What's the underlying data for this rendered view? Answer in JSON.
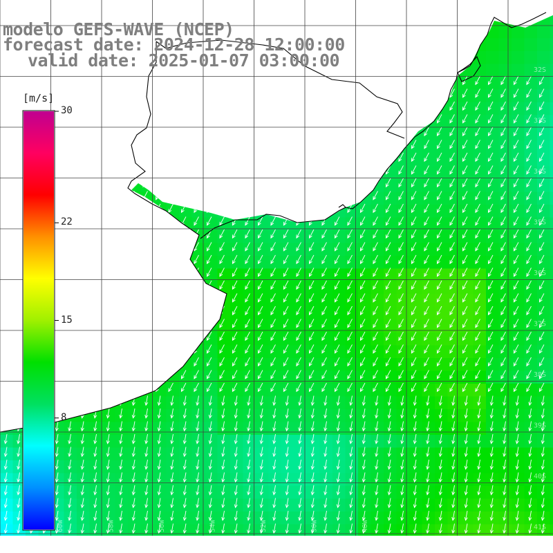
{
  "title": {
    "line1": "modelo GEFS-WAVE (NCEP)",
    "line2": "forecast date: 2024-12-28 12:00:00",
    "line3": "valid date: 2025-01-07 03:00:00"
  },
  "colorbar": {
    "unit": "[m/s]",
    "min": 0,
    "max": 30,
    "tick_labels": [
      "30",
      "22",
      "15",
      "8"
    ],
    "tick_values": [
      30,
      22,
      15,
      8
    ],
    "colors": [
      "#0000ff",
      "#0090ff",
      "#00ffff",
      "#00e060",
      "#00e000",
      "#a0f000",
      "#ffff00",
      "#ff9000",
      "#ff0000",
      "#ff0060",
      "#c00090"
    ]
  },
  "field": {
    "variable": "wind speed",
    "arrow_direction": "south-southwest",
    "dominant_range_ms": [
      7,
      13
    ]
  },
  "labels": {
    "longitude": [
      "60W",
      "58W",
      "56W",
      "54W",
      "52W",
      "50W",
      "48W"
    ],
    "latitude": [
      "32S",
      "33S",
      "34S",
      "35S",
      "36S",
      "37S",
      "38S",
      "39S",
      "40S",
      "41S"
    ]
  },
  "colors": {
    "title": "#7f7f7f",
    "land": "#ffffff",
    "coastline": "#000000",
    "grid": "#404040",
    "arrows": "#ffffff"
  }
}
